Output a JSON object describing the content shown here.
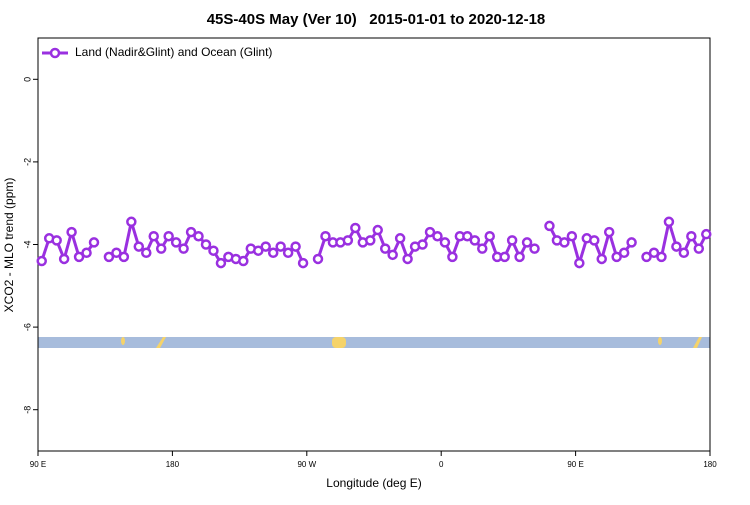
{
  "chart_data": {
    "type": "line",
    "title": "45S-40S May (Ver 10)   2015-01-01 to 2020-12-18",
    "xlabel": "Longitude (deg E)",
    "ylabel": "XCO2 - MLO trend (ppm)",
    "legend": "top-left",
    "xlim": [
      90,
      540
    ],
    "ylim": [
      -9,
      1
    ],
    "xticks": [
      {
        "value": 90,
        "label": "90 E"
      },
      180,
      {
        "value": 270,
        "label": "90 W"
      },
      {
        "value": 360,
        "label": "0"
      },
      {
        "value": 450,
        "label": "90 E"
      },
      {
        "value": 540,
        "label": "180"
      }
    ],
    "yticks": [
      0,
      -2,
      -4,
      -6,
      -8
    ],
    "x": [
      92.5,
      97.5,
      102.5,
      107.5,
      112.5,
      117.5,
      122.5,
      127.5,
      132.5,
      137.5,
      142.5,
      147.5,
      152.5,
      157.5,
      162.5,
      167.5,
      172.5,
      177.5,
      182.5,
      187.5,
      192.5,
      197.5,
      202.5,
      207.5,
      212.5,
      217.5,
      222.5,
      227.5,
      232.5,
      237.5,
      242.5,
      247.5,
      252.5,
      257.5,
      262.5,
      267.5,
      272.5,
      277.5,
      282.5,
      287.5,
      292.5,
      297.5,
      302.5,
      307.5,
      312.5,
      317.5,
      322.5,
      327.5,
      332.5,
      337.5,
      342.5,
      347.5,
      352.5,
      357.5,
      362.5,
      367.5,
      372.5,
      377.5,
      382.5,
      387.5,
      392.5,
      397.5,
      402.5,
      407.5,
      412.5,
      417.5,
      422.5,
      427.5,
      432.5,
      437.5,
      442.5,
      447.5,
      452.5,
      457.5,
      462.5,
      467.5,
      472.5,
      477.5,
      482.5,
      487.5,
      492.5,
      497.5,
      502.5,
      507.5,
      512.5,
      517.5,
      522.5,
      527.5,
      532.5,
      537.5
    ],
    "series": [
      {
        "name": "Land (Nadir&Glint) and Ocean (Glint)",
        "color": "#9a30e0",
        "values": [
          -4.4,
          -3.85,
          -3.9,
          -4.35,
          -3.7,
          -4.3,
          -4.2,
          -3.95,
          null,
          -4.3,
          -4.2,
          -4.3,
          -3.45,
          -4.05,
          -4.2,
          -3.8,
          -4.1,
          -3.8,
          -3.95,
          -4.1,
          -3.7,
          -3.8,
          -4.0,
          -4.15,
          -4.45,
          -4.3,
          -4.35,
          -4.4,
          -4.1,
          -4.15,
          -4.05,
          -4.2,
          -4.05,
          -4.2,
          -4.05,
          -4.45,
          null,
          -4.35,
          -3.8,
          -3.95,
          -3.95,
          -3.9,
          -3.6,
          -3.95,
          -3.9,
          -3.65,
          -4.1,
          -4.25,
          -3.85,
          -4.35,
          -4.05,
          -4.0,
          -3.7,
          -3.8,
          -3.95,
          -4.3,
          -3.8,
          -3.8,
          -3.9,
          -4.1,
          -3.8,
          -4.3,
          -4.3,
          -3.9,
          -4.3,
          -3.95,
          -4.1,
          null,
          -3.55,
          -3.9,
          -3.95,
          -3.8,
          -4.45,
          -3.85,
          -3.9,
          -4.35,
          -3.7,
          -4.3,
          -4.2,
          -3.95,
          null,
          -4.3,
          -4.2,
          -4.3,
          -3.45,
          -4.05,
          -4.2,
          -3.8,
          -4.1,
          -3.75
        ]
      }
    ]
  }
}
